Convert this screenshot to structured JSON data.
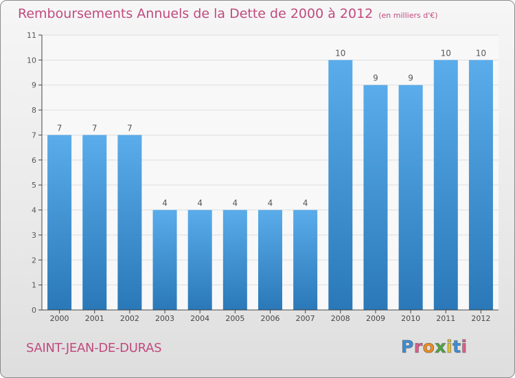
{
  "chart_title": "Remboursements Annuels de la Dette de 2000 à 2012",
  "chart_unit": "(en milliers d'€)",
  "commune": "SAINT-JEAN-DE-DURAS",
  "logo": {
    "text": "Proxiti",
    "letters": [
      "P",
      "r",
      "o",
      "x",
      "i",
      "t",
      "i"
    ],
    "colors": [
      "#3a8fd6",
      "#e05c8c",
      "#f28a1c",
      "#4fa83d",
      "#e8c52a",
      "#3a8fd6",
      "#e05c8c"
    ]
  },
  "colors": {
    "title": "#c04a7e",
    "bar_top": "#5aacea",
    "bar_bottom": "#2a78b8",
    "axis": "#444444"
  },
  "chart_data": {
    "type": "bar",
    "title": "Remboursements Annuels de la Dette de 2000 à 2012",
    "subtitle": "(en milliers d'€)",
    "categories": [
      "2000",
      "2001",
      "2002",
      "2003",
      "2004",
      "2005",
      "2006",
      "2007",
      "2008",
      "2009",
      "2010",
      "2011",
      "2012"
    ],
    "values": [
      7,
      7,
      7,
      4,
      4,
      4,
      4,
      4,
      10,
      9,
      9,
      10,
      10
    ],
    "data_labels": [
      "7",
      "7",
      "7",
      "4",
      "4",
      "4",
      "4",
      "4",
      "10",
      "9",
      "9",
      "10",
      "10"
    ],
    "y_ticks": [
      "0",
      "1",
      "2",
      "3",
      "4",
      "5",
      "6",
      "7",
      "8",
      "9",
      "10",
      "11"
    ],
    "ylim": [
      0,
      11
    ],
    "grid": true,
    "legend": "none"
  }
}
